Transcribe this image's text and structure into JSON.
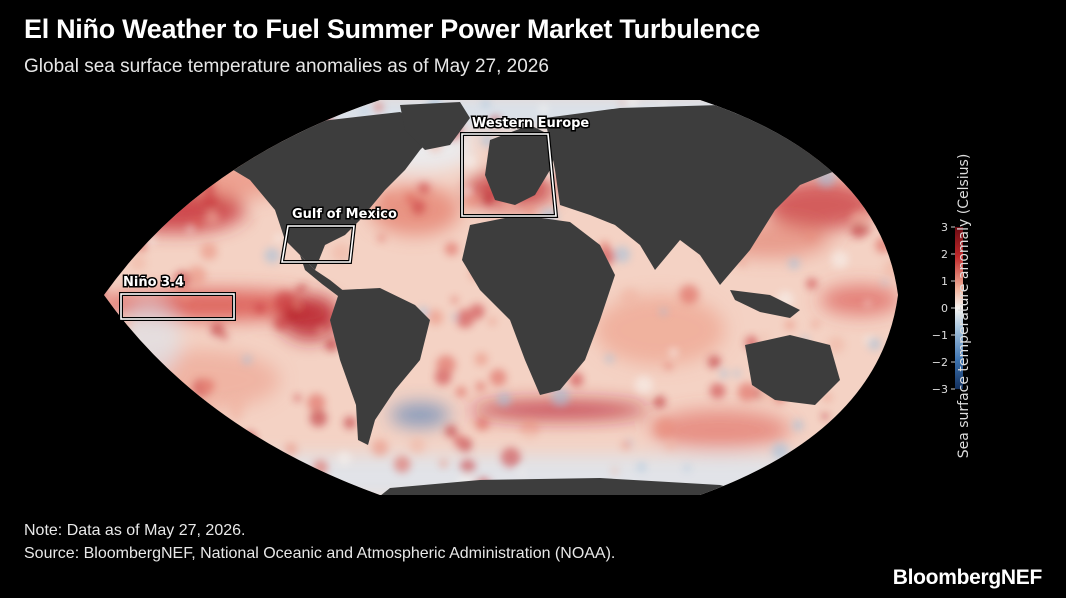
{
  "header": {
    "title": "El Niño Weather to Fuel Summer Power Market Turbulence",
    "subtitle": "Global sea surface temperature anomalies as of May 27, 2026"
  },
  "map": {
    "projection": "robinson",
    "regions": [
      {
        "id": "western-europe",
        "label": "Western Europe"
      },
      {
        "id": "gulf-of-mexico",
        "label": "Gulf of Mexico"
      },
      {
        "id": "nino-34",
        "label": "Niño 3.4"
      }
    ],
    "colorbar": {
      "title": "Sea surface temperature anomaly (Celsius)",
      "min": -3,
      "max": 3,
      "ticks": [
        "3",
        "2",
        "1",
        "0",
        "−1",
        "−2",
        "−3"
      ],
      "colors": {
        "cold": "#2c5f9e",
        "neutral": "#f7f4f1",
        "warm": "#a3101a"
      }
    },
    "land_color": "#3d3d3d"
  },
  "footer": {
    "note": "Note: Data as of May 27, 2026.",
    "source": "Source: BloombergNEF, National Oceanic and Atmospheric Administration (NOAA).",
    "logo": "BloombergNEF"
  }
}
